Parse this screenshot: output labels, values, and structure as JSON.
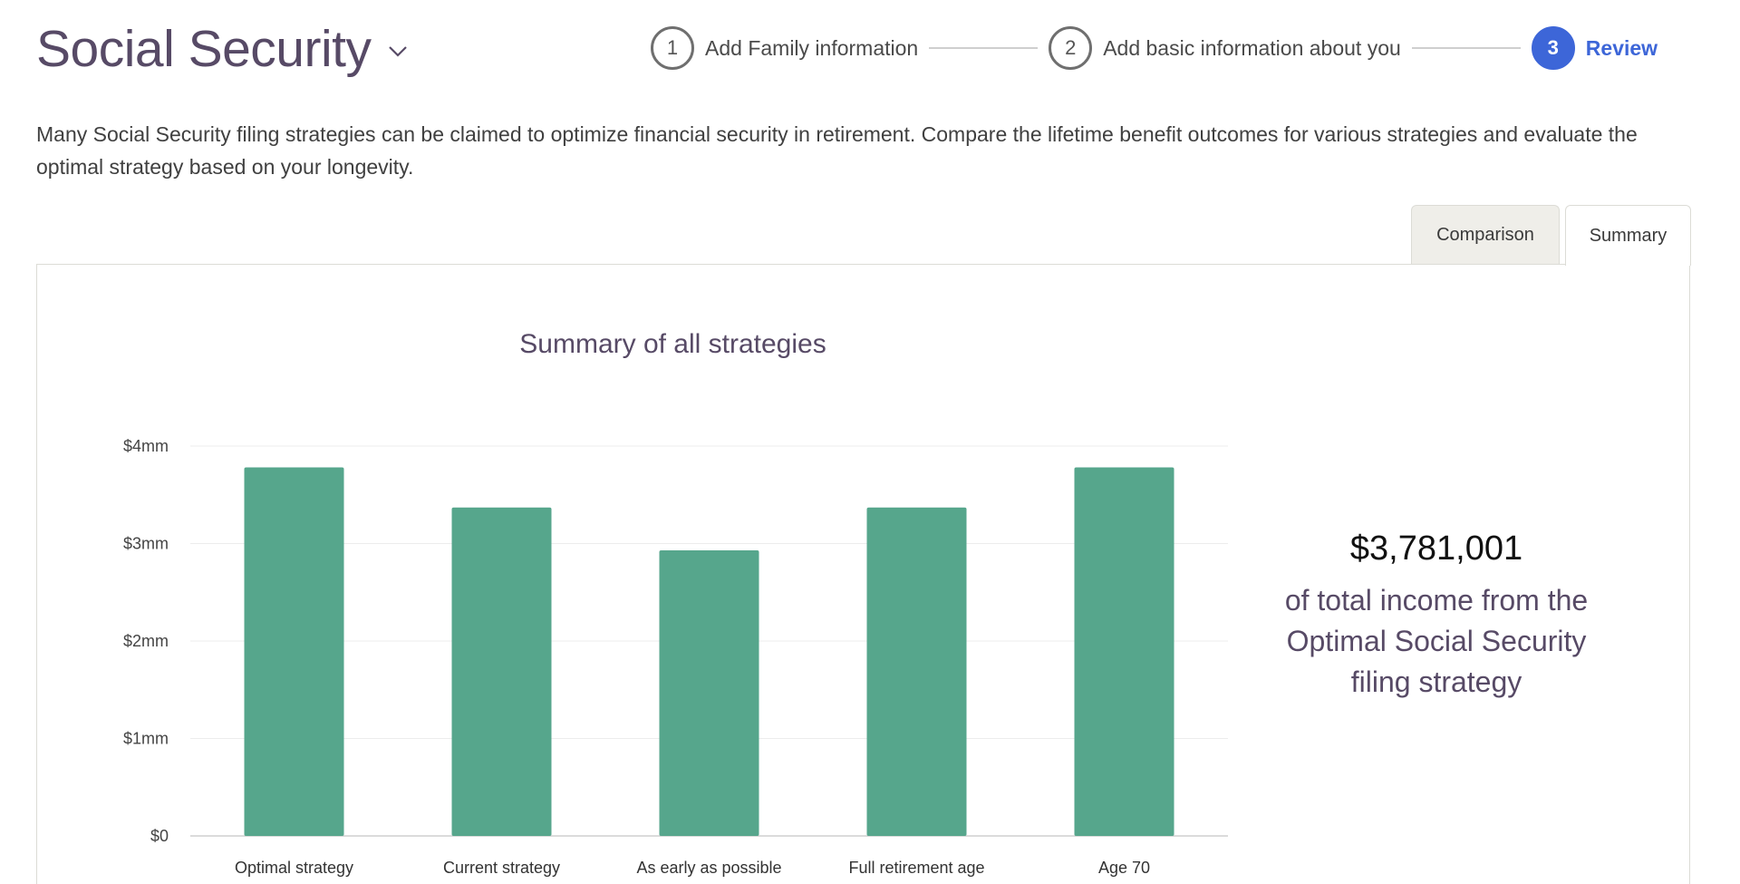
{
  "header": {
    "title": "Social Security",
    "steps": [
      {
        "number": "1",
        "label": "Add Family information"
      },
      {
        "number": "2",
        "label": "Add basic information about you"
      },
      {
        "number": "3",
        "label": "Review"
      }
    ]
  },
  "intro": "Many Social Security filing strategies can be claimed to optimize financial security in retirement. Compare the lifetime benefit outcomes for various strategies and evaluate the optimal strategy based on your longevity.",
  "tabs": {
    "comparison": "Comparison",
    "summary": "Summary"
  },
  "colors": {
    "bar": "#56a68c",
    "accent": "#3d66d8",
    "title": "#574a66"
  },
  "chart_data": {
    "type": "bar",
    "title": "Summary of all strategies",
    "categories": [
      "Optimal strategy",
      "Current strategy",
      "As early as possible",
      "Full retirement age",
      "Age 70"
    ],
    "values": [
      3781001,
      3370000,
      2930000,
      3370000,
      3781001
    ],
    "ylim": [
      0,
      4000000
    ],
    "yticks": [
      {
        "value": 0,
        "label": "$0"
      },
      {
        "value": 1000000,
        "label": "$1mm"
      },
      {
        "value": 2000000,
        "label": "$2mm"
      },
      {
        "value": 3000000,
        "label": "$3mm"
      },
      {
        "value": 4000000,
        "label": "$4mm"
      }
    ],
    "grid": true
  },
  "summary": {
    "amount": "$3,781,001",
    "text_lines": [
      "of total income from the",
      "Optimal Social Security",
      "filing strategy"
    ]
  }
}
